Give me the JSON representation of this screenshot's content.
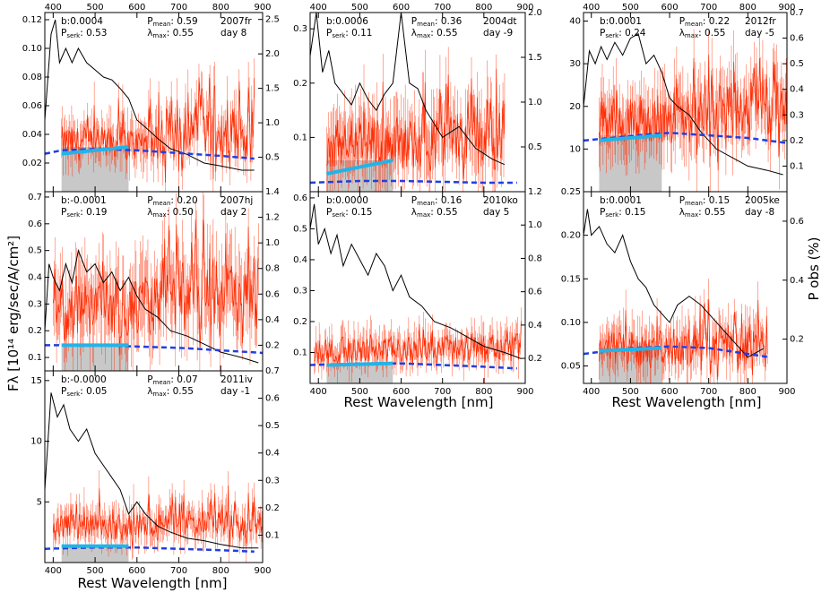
{
  "figure": {
    "y_label_left": "Fλ [10¹⁴ erg/sec/A/cm²]",
    "y_label_right": "P obs (%)",
    "x_label": "Rest Wavelength [nm]"
  },
  "colors": {
    "flux": "#000000",
    "polarization": "#ff2a00",
    "serkowski": "#1f3fe0",
    "linear_fit": "#22b4e8",
    "fill": "#c8c8c8"
  },
  "chart_data": [
    {
      "type": "line",
      "sn": "2007fr",
      "day": "day 8",
      "b": "b:0.0004",
      "pserk": "0.53",
      "pmean": "0.59",
      "lmax": "0.55",
      "xlim": [
        380,
        900
      ],
      "ylim_left": [
        0,
        0.125
      ],
      "ylim_right": [
        0,
        2.6
      ],
      "left_ticks": [
        "0.02",
        "0.04",
        "0.06",
        "0.08",
        "0.10",
        "0.12"
      ],
      "left_tick_values": [
        0.02,
        0.04,
        0.06,
        0.08,
        0.1,
        0.12
      ],
      "right_ticks": [
        "0.5",
        "1.0",
        "1.5",
        "2.0",
        "2.5"
      ],
      "right_tick_values": [
        0.5,
        1.0,
        1.5,
        2.0,
        2.5
      ],
      "pol_base": 0.7,
      "pol_noise": 0.25,
      "pol_wild": 1.4,
      "pol_start": 420,
      "pol_end": 880,
      "flux": [
        [
          380,
          0.05
        ],
        [
          395,
          0.11
        ],
        [
          405,
          0.12
        ],
        [
          415,
          0.09
        ],
        [
          430,
          0.1
        ],
        [
          445,
          0.09
        ],
        [
          460,
          0.1
        ],
        [
          480,
          0.09
        ],
        [
          500,
          0.085
        ],
        [
          520,
          0.08
        ],
        [
          540,
          0.078
        ],
        [
          560,
          0.072
        ],
        [
          580,
          0.065
        ],
        [
          600,
          0.05
        ],
        [
          620,
          0.045
        ],
        [
          650,
          0.037
        ],
        [
          680,
          0.03
        ],
        [
          720,
          0.026
        ],
        [
          760,
          0.02
        ],
        [
          800,
          0.018
        ],
        [
          850,
          0.015
        ],
        [
          880,
          0.015
        ]
      ],
      "serk": [
        [
          380,
          0.55
        ],
        [
          420,
          0.6
        ],
        [
          500,
          0.62
        ],
        [
          600,
          0.6
        ],
        [
          700,
          0.56
        ],
        [
          800,
          0.52
        ],
        [
          880,
          0.48
        ]
      ],
      "fit": [
        [
          420,
          0.55
        ],
        [
          580,
          0.65
        ]
      ],
      "fill_top": 0.65
    },
    {
      "type": "line",
      "sn": "2004dt",
      "day": "day -9",
      "b": "b:0.0006",
      "pserk": "0.11",
      "pmean": "0.36",
      "lmax": "0.55",
      "xlim": [
        380,
        900
      ],
      "ylim_left": [
        0,
        0.33
      ],
      "ylim_right": [
        0,
        2.0
      ],
      "left_ticks": [
        "0.1",
        "0.2",
        "0.3"
      ],
      "left_tick_values": [
        0.1,
        0.2,
        0.3
      ],
      "right_ticks": [
        "0.5",
        "1.0",
        "1.5",
        "2.0"
      ],
      "right_tick_values": [
        0.5,
        1.0,
        1.5,
        2.0
      ],
      "pol_base": 0.55,
      "pol_noise": 0.3,
      "pol_wild": 0.9,
      "pol_start": 420,
      "pol_end": 850,
      "flux": [
        [
          380,
          0.25
        ],
        [
          395,
          0.33
        ],
        [
          410,
          0.22
        ],
        [
          425,
          0.26
        ],
        [
          440,
          0.2
        ],
        [
          460,
          0.18
        ],
        [
          480,
          0.16
        ],
        [
          500,
          0.2
        ],
        [
          520,
          0.17
        ],
        [
          540,
          0.15
        ],
        [
          560,
          0.18
        ],
        [
          580,
          0.2
        ],
        [
          600,
          0.33
        ],
        [
          620,
          0.2
        ],
        [
          640,
          0.19
        ],
        [
          660,
          0.15
        ],
        [
          700,
          0.1
        ],
        [
          740,
          0.12
        ],
        [
          780,
          0.08
        ],
        [
          820,
          0.06
        ],
        [
          850,
          0.05
        ]
      ],
      "serk": [
        [
          380,
          0.1
        ],
        [
          500,
          0.12
        ],
        [
          600,
          0.12
        ],
        [
          700,
          0.11
        ],
        [
          800,
          0.1
        ],
        [
          880,
          0.1
        ]
      ],
      "fit": [
        [
          420,
          0.2
        ],
        [
          580,
          0.35
        ]
      ],
      "fill_top": 0.35
    },
    {
      "type": "line",
      "sn": "2012fr",
      "day": "day -5",
      "b": "b:0.0001",
      "pserk": "0.24",
      "pmean": "0.22",
      "lmax": "0.55",
      "xlim": [
        380,
        900
      ],
      "ylim_left": [
        0,
        42
      ],
      "ylim_right": [
        0,
        0.7
      ],
      "left_ticks": [
        "10",
        "20",
        "30",
        "40"
      ],
      "left_tick_values": [
        10,
        20,
        30,
        40
      ],
      "right_ticks": [
        "0.1",
        "0.2",
        "0.3",
        "0.4",
        "0.5",
        "0.6",
        "0.7"
      ],
      "right_tick_values": [
        0.1,
        0.2,
        0.3,
        0.4,
        0.5,
        0.6,
        0.7
      ],
      "pol_base": 0.28,
      "pol_noise": 0.1,
      "pol_wild": 0.25,
      "pol_start": 420,
      "pol_end": 900,
      "flux": [
        [
          380,
          20
        ],
        [
          395,
          33
        ],
        [
          410,
          30
        ],
        [
          425,
          34
        ],
        [
          440,
          31
        ],
        [
          460,
          35
        ],
        [
          480,
          32
        ],
        [
          500,
          36
        ],
        [
          520,
          37
        ],
        [
          540,
          30
        ],
        [
          560,
          32
        ],
        [
          580,
          28
        ],
        [
          600,
          22
        ],
        [
          620,
          20
        ],
        [
          650,
          18
        ],
        [
          680,
          14
        ],
        [
          720,
          10
        ],
        [
          760,
          8
        ],
        [
          800,
          6
        ],
        [
          850,
          5
        ],
        [
          890,
          4
        ]
      ],
      "serk": [
        [
          380,
          0.2
        ],
        [
          450,
          0.21
        ],
        [
          550,
          0.225
        ],
        [
          600,
          0.23
        ],
        [
          700,
          0.22
        ],
        [
          800,
          0.21
        ],
        [
          900,
          0.19
        ]
      ],
      "fit": [
        [
          420,
          0.2
        ],
        [
          580,
          0.22
        ]
      ],
      "fill_top": 0.22
    },
    {
      "type": "line",
      "sn": "2007hj",
      "day": "day 2",
      "b": "b:-0.0001",
      "pserk": "0.19",
      "pmean": "0.20",
      "lmax": "0.50",
      "xlim": [
        380,
        900
      ],
      "ylim_left": [
        0.05,
        0.72
      ],
      "ylim_right": [
        0,
        1.4
      ],
      "left_ticks": [
        "0.1",
        "0.2",
        "0.3",
        "0.4",
        "0.5",
        "0.6",
        "0.7"
      ],
      "left_tick_values": [
        0.1,
        0.2,
        0.3,
        0.4,
        0.5,
        0.6,
        0.7
      ],
      "right_ticks": [
        "0.2",
        "0.4",
        "0.6",
        "0.8",
        "1.0",
        "1.2",
        "1.4"
      ],
      "right_tick_values": [
        0.2,
        0.4,
        0.6,
        0.8,
        1.0,
        1.2,
        1.4
      ],
      "pol_base": 0.5,
      "pol_noise": 0.25,
      "pol_wild": 0.7,
      "pol_start": 400,
      "pol_end": 890,
      "flux": [
        [
          380,
          0.2
        ],
        [
          390,
          0.45
        ],
        [
          400,
          0.4
        ],
        [
          415,
          0.35
        ],
        [
          430,
          0.45
        ],
        [
          445,
          0.38
        ],
        [
          460,
          0.5
        ],
        [
          480,
          0.42
        ],
        [
          500,
          0.45
        ],
        [
          520,
          0.38
        ],
        [
          540,
          0.42
        ],
        [
          560,
          0.35
        ],
        [
          580,
          0.4
        ],
        [
          600,
          0.33
        ],
        [
          620,
          0.28
        ],
        [
          650,
          0.25
        ],
        [
          680,
          0.2
        ],
        [
          720,
          0.18
        ],
        [
          760,
          0.15
        ],
        [
          800,
          0.12
        ],
        [
          850,
          0.1
        ],
        [
          890,
          0.08
        ]
      ],
      "serk": [
        [
          380,
          0.2
        ],
        [
          500,
          0.2
        ],
        [
          600,
          0.19
        ],
        [
          700,
          0.18
        ],
        [
          800,
          0.16
        ],
        [
          900,
          0.14
        ]
      ],
      "fit": [
        [
          420,
          0.2
        ],
        [
          580,
          0.2
        ]
      ],
      "fill_top": 0.2
    },
    {
      "type": "line",
      "sn": "2010ko",
      "day": "day 5",
      "b": "b:0.0000",
      "pserk": "0.15",
      "pmean": "0.16",
      "lmax": "0.55",
      "xlim": [
        380,
        900
      ],
      "ylim_left": [
        0,
        0.62
      ],
      "ylim_right": [
        0.05,
        1.2
      ],
      "left_ticks": [
        "0.1",
        "0.2",
        "0.3",
        "0.4",
        "0.5",
        "0.6"
      ],
      "left_tick_values": [
        0.1,
        0.2,
        0.3,
        0.4,
        0.5,
        0.6
      ],
      "right_ticks": [
        "0.2",
        "0.4",
        "0.6",
        "0.8",
        "1.0",
        "1.2"
      ],
      "right_tick_values": [
        0.2,
        0.4,
        0.6,
        0.8,
        1.0,
        1.2
      ],
      "pol_base": 0.25,
      "pol_noise": 0.08,
      "pol_wild": 0.15,
      "pol_start": 390,
      "pol_end": 890,
      "flux": [
        [
          380,
          0.5
        ],
        [
          390,
          0.58
        ],
        [
          400,
          0.45
        ],
        [
          415,
          0.5
        ],
        [
          430,
          0.42
        ],
        [
          445,
          0.48
        ],
        [
          460,
          0.38
        ],
        [
          480,
          0.45
        ],
        [
          500,
          0.4
        ],
        [
          520,
          0.35
        ],
        [
          540,
          0.42
        ],
        [
          560,
          0.38
        ],
        [
          580,
          0.3
        ],
        [
          600,
          0.35
        ],
        [
          620,
          0.28
        ],
        [
          650,
          0.25
        ],
        [
          680,
          0.2
        ],
        [
          720,
          0.18
        ],
        [
          760,
          0.15
        ],
        [
          800,
          0.12
        ],
        [
          850,
          0.1
        ],
        [
          890,
          0.08
        ]
      ],
      "serk": [
        [
          380,
          0.16
        ],
        [
          500,
          0.17
        ],
        [
          600,
          0.17
        ],
        [
          700,
          0.16
        ],
        [
          800,
          0.15
        ],
        [
          880,
          0.14
        ]
      ],
      "fit": [
        [
          420,
          0.16
        ],
        [
          580,
          0.17
        ]
      ],
      "fill_top": 0.17
    },
    {
      "type": "line",
      "sn": "2005ke",
      "day": "day -8",
      "b": "b:0.0001",
      "pserk": "0.15",
      "pmean": "0.15",
      "lmax": "0.55",
      "xlim": [
        380,
        900
      ],
      "ylim_left": [
        0.03,
        0.25
      ],
      "ylim_right": [
        0.05,
        0.7
      ],
      "left_ticks": [
        "0.05",
        "0.10",
        "0.15",
        "0.20",
        "0.25"
      ],
      "left_tick_values": [
        0.05,
        0.1,
        0.15,
        0.2,
        0.25
      ],
      "right_ticks": [
        "0.2",
        "0.4",
        "0.6"
      ],
      "right_tick_values": [
        0.2,
        0.4,
        0.6
      ],
      "pol_base": 0.17,
      "pol_noise": 0.06,
      "pol_wild": 0.18,
      "pol_start": 420,
      "pol_end": 850,
      "flux": [
        [
          380,
          0.2
        ],
        [
          390,
          0.23
        ],
        [
          400,
          0.2
        ],
        [
          420,
          0.21
        ],
        [
          440,
          0.19
        ],
        [
          460,
          0.18
        ],
        [
          480,
          0.2
        ],
        [
          500,
          0.17
        ],
        [
          520,
          0.15
        ],
        [
          540,
          0.14
        ],
        [
          560,
          0.12
        ],
        [
          580,
          0.11
        ],
        [
          600,
          0.1
        ],
        [
          620,
          0.12
        ],
        [
          650,
          0.13
        ],
        [
          680,
          0.12
        ],
        [
          720,
          0.1
        ],
        [
          760,
          0.08
        ],
        [
          800,
          0.06
        ],
        [
          840,
          0.07
        ]
      ],
      "serk": [
        [
          380,
          0.15
        ],
        [
          500,
          0.17
        ],
        [
          600,
          0.175
        ],
        [
          700,
          0.17
        ],
        [
          800,
          0.15
        ],
        [
          850,
          0.14
        ]
      ],
      "fit": [
        [
          420,
          0.16
        ],
        [
          580,
          0.17
        ]
      ],
      "fill_top": 0.17
    },
    {
      "type": "line",
      "sn": "2011iv",
      "day": "day -1",
      "b": "b:-0.0000",
      "pserk": "0.05",
      "pmean": "0.07",
      "lmax": "0.55",
      "xlim": [
        380,
        900
      ],
      "ylim_left": [
        0,
        15.8
      ],
      "ylim_right": [
        0,
        0.7
      ],
      "left_ticks": [
        "5",
        "10",
        "15"
      ],
      "left_tick_values": [
        5,
        10,
        15
      ],
      "right_ticks": [
        "0.1",
        "0.2",
        "0.3",
        "0.4",
        "0.5",
        "0.6",
        "0.7"
      ],
      "right_tick_values": [
        0.1,
        0.2,
        0.3,
        0.4,
        0.5,
        0.6,
        0.7
      ],
      "pol_base": 0.13,
      "pol_noise": 0.05,
      "pol_wild": 0.15,
      "pol_start": 400,
      "pol_end": 900,
      "flux": [
        [
          380,
          6
        ],
        [
          395,
          14
        ],
        [
          410,
          12
        ],
        [
          425,
          13
        ],
        [
          440,
          11
        ],
        [
          460,
          10
        ],
        [
          480,
          11
        ],
        [
          500,
          9
        ],
        [
          520,
          8
        ],
        [
          540,
          7
        ],
        [
          560,
          6
        ],
        [
          580,
          4
        ],
        [
          600,
          5
        ],
        [
          620,
          4
        ],
        [
          650,
          3
        ],
        [
          680,
          2.5
        ],
        [
          720,
          2
        ],
        [
          760,
          1.8
        ],
        [
          800,
          1.5
        ],
        [
          850,
          1.2
        ],
        [
          890,
          1.2
        ]
      ],
      "serk": [
        [
          380,
          0.05
        ],
        [
          500,
          0.055
        ],
        [
          600,
          0.055
        ],
        [
          700,
          0.05
        ],
        [
          800,
          0.045
        ],
        [
          880,
          0.04
        ]
      ],
      "fit": [
        [
          420,
          0.06
        ],
        [
          580,
          0.06
        ]
      ],
      "fill_top": 0.06
    }
  ]
}
